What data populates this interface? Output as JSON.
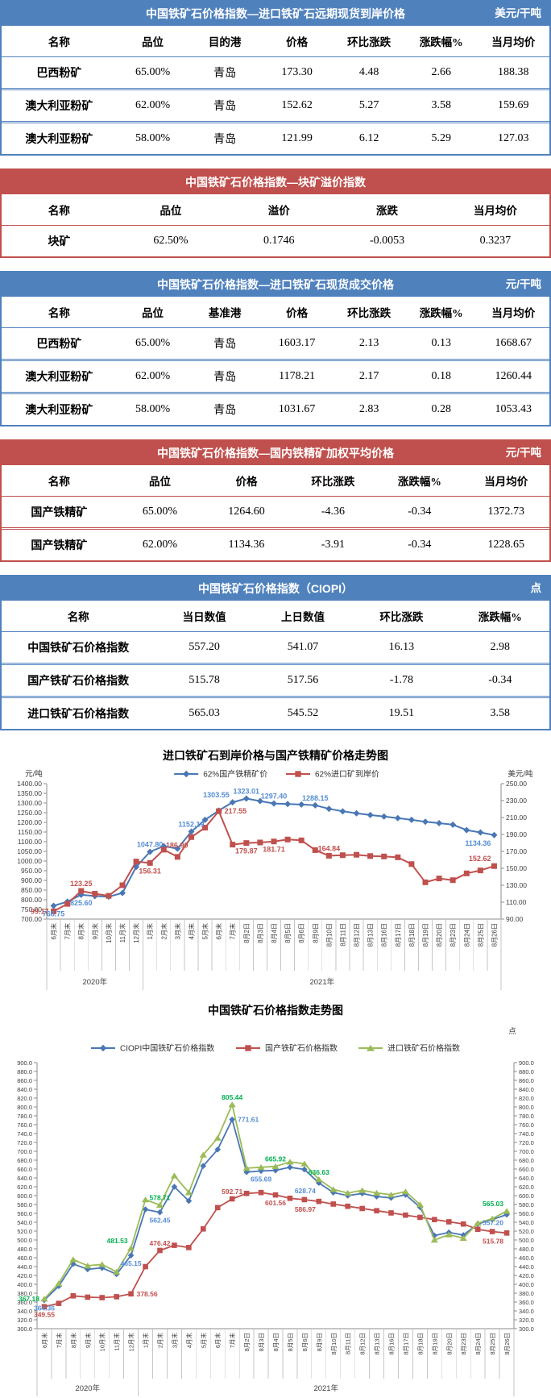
{
  "accent_colors": {
    "blue_theme": "#4F81BD",
    "red_theme": "#C0504D"
  },
  "tables": [
    {
      "theme": "blue",
      "title": "中国铁矿石价格指数—进口铁矿石远期现货到岸价格",
      "unit": "美元/干吨",
      "columns": [
        "名称",
        "品位",
        "目的港",
        "价格",
        "环比涨跌",
        "涨跌幅%",
        "当月均价"
      ],
      "rows": [
        [
          "巴西粉矿",
          "65.00%",
          "青岛",
          "173.30",
          "4.48",
          "2.66",
          "188.38"
        ],
        [
          "澳大利亚粉矿",
          "62.00%",
          "青岛",
          "152.62",
          "5.27",
          "3.58",
          "159.69"
        ],
        [
          "澳大利亚粉矿",
          "58.00%",
          "青岛",
          "121.99",
          "6.12",
          "5.29",
          "127.03"
        ]
      ]
    },
    {
      "theme": "red",
      "title": "中国铁矿石价格指数—块矿溢价指数",
      "unit": "",
      "columns": [
        "名称",
        "品位",
        "溢价",
        "涨跌",
        "当月均价"
      ],
      "rows": [
        [
          "块矿",
          "62.50%",
          "0.1746",
          "-0.0053",
          "0.3237"
        ]
      ]
    },
    {
      "theme": "blue",
      "title": "中国铁矿石价格指数—进口铁矿石现货成交价格",
      "unit": "元/干吨",
      "columns": [
        "名称",
        "品位",
        "基准港",
        "价格",
        "环比涨跌",
        "涨跌幅%",
        "当月均价"
      ],
      "rows": [
        [
          "巴西粉矿",
          "65.00%",
          "青岛",
          "1603.17",
          "2.13",
          "0.13",
          "1668.67"
        ],
        [
          "澳大利亚粉矿",
          "62.00%",
          "青岛",
          "1178.21",
          "2.17",
          "0.18",
          "1260.44"
        ],
        [
          "澳大利亚粉矿",
          "58.00%",
          "青岛",
          "1031.67",
          "2.83",
          "0.28",
          "1053.43"
        ]
      ]
    },
    {
      "theme": "red",
      "title": "中国铁矿石价格指数—国内铁精矿加权平均价格",
      "unit": "元/干吨",
      "columns": [
        "名称",
        "品位",
        "价格",
        "环比涨跌",
        "涨跌幅%",
        "当月均价"
      ],
      "rows": [
        [
          "国产铁精矿",
          "65.00%",
          "1264.60",
          "-4.36",
          "-0.34",
          "1372.73"
        ],
        [
          "国产铁精矿",
          "62.00%",
          "1134.36",
          "-3.91",
          "-0.34",
          "1228.65"
        ]
      ]
    },
    {
      "theme": "blue",
      "title": "中国铁矿石价格指数（CIOPI）",
      "unit": "点",
      "columns": [
        "名称",
        "当日数值",
        "上日数值",
        "环比涨跌",
        "涨跌幅%"
      ],
      "rows": [
        [
          "中国铁矿石价格指数",
          "557.20",
          "541.07",
          "16.13",
          "2.98"
        ],
        [
          "国产铁矿石价格指数",
          "515.78",
          "517.56",
          "-1.78",
          "-0.34"
        ],
        [
          "进口铁矿石价格指数",
          "565.03",
          "545.52",
          "19.51",
          "3.58"
        ]
      ]
    }
  ],
  "chart_data": [
    {
      "type": "line",
      "title": "进口铁矿石到岸价格与国产铁精矿价格走势图",
      "left_axis_label": "元/吨",
      "right_axis_label": "美元/吨",
      "left_ylim": [
        700,
        1400
      ],
      "left_step": 50,
      "right_ylim": [
        90,
        250
      ],
      "right_step": 20,
      "grid": false,
      "legend_position": "top",
      "categories": [
        "6月末",
        "7月末",
        "8月末",
        "9月末",
        "10月末",
        "11月末",
        "12月末",
        "1月末",
        "2月末",
        "3月末",
        "4月末",
        "5月末",
        "6月末",
        "7月末",
        "8月2日",
        "8月3日",
        "8月4日",
        "8月5日",
        "8月6日",
        "8月9日",
        "8月10日",
        "8月11日",
        "8月12日",
        "8月13日",
        "8月16日",
        "8月17日",
        "8月18日",
        "8月19日",
        "8月20日",
        "8月23日",
        "8月24日",
        "8月25日",
        "8月26日"
      ],
      "year_groups": [
        {
          "label": "2020年",
          "span": 7
        },
        {
          "label": "2021年",
          "span": 26
        }
      ],
      "series": [
        {
          "name": "62%国产铁精矿价",
          "axis": "left",
          "marker": "diamond",
          "color": "#4977B5",
          "label_color": "#558ED5",
          "values": [
            768.75,
            790,
            825.6,
            819,
            816,
            835,
            970,
            1047.8,
            1077,
            1064,
            1152.19,
            1213,
            1261,
            1303.55,
            1323.01,
            1310,
            1297.4,
            1295,
            1292,
            1288.15,
            1270,
            1257,
            1247,
            1238,
            1230,
            1222,
            1213,
            1203,
            1196,
            1188,
            1160,
            1148,
            1134.36
          ],
          "labels": [
            [
              0,
              "768.75",
              "below"
            ],
            [
              2,
              "825.60",
              "below"
            ],
            [
              7,
              "1047.80",
              "above"
            ],
            [
              10,
              "1152.19",
              "above"
            ],
            [
              13,
              "1303.55",
              "above-left"
            ],
            [
              14,
              "1323.01",
              "above"
            ],
            [
              16,
              "1297.40",
              "above"
            ],
            [
              19,
              "1288.15",
              "above"
            ],
            [
              32,
              "1134.36",
              "below-left"
            ]
          ]
        },
        {
          "name": "62%进口矿到岸价",
          "axis": "right",
          "marker": "square",
          "color": "#C0504D",
          "label_color": "#C0504D",
          "values": [
            99.17,
            108,
            123.25,
            120,
            117.5,
            130,
            158,
            156.31,
            172,
            163.5,
            186.9,
            198,
            217.55,
            178,
            179.87,
            180.5,
            181.71,
            184,
            183,
            171.5,
            164.84,
            165.5,
            166,
            164.5,
            164,
            163,
            155,
            133.5,
            138,
            136,
            144,
            147.5,
            152.62
          ],
          "labels": [
            [
              0,
              "99.17",
              "left"
            ],
            [
              2,
              "123.25",
              "above"
            ],
            [
              7,
              "156.31",
              "below"
            ],
            [
              10,
              "186.90",
              "below-left"
            ],
            [
              12,
              "217.55",
              "right"
            ],
            [
              14,
              "179.87",
              "below"
            ],
            [
              16,
              "181.71",
              "below"
            ],
            [
              20,
              "164.84",
              "above"
            ],
            [
              32,
              "152.62",
              "above-left"
            ]
          ]
        }
      ]
    },
    {
      "type": "line",
      "title": "中国铁矿石价格指数走势图",
      "unit_label": "点",
      "left_ylim": [
        300,
        900
      ],
      "left_step": 20,
      "right_ylim": [
        300,
        900
      ],
      "right_step": 20,
      "grid": false,
      "legend_position": "top",
      "categories": [
        "6月末",
        "7月末",
        "8月末",
        "9月末",
        "10月末",
        "11月末",
        "12月末",
        "1月末",
        "2月末",
        "3月末",
        "4月末",
        "5月末",
        "6月末",
        "7月末",
        "8月2日",
        "8月3日",
        "8月4日",
        "8月5日",
        "8月6日",
        "8月9日",
        "8月10日",
        "8月11日",
        "8月12日",
        "8月13日",
        "8月16日",
        "8月17日",
        "8月18日",
        "8月19日",
        "8月20日",
        "8月23日",
        "8月24日",
        "8月25日",
        "8月26日"
      ],
      "year_groups": [
        {
          "label": "2020年",
          "span": 7
        },
        {
          "label": "2021年",
          "span": 26
        }
      ],
      "series": [
        {
          "name": "CIOPI中国铁矿石价格指数",
          "axis": "left",
          "marker": "diamond",
          "color": "#4977B5",
          "label_color": "#558ED5",
          "values": [
            364.36,
            396,
            446,
            434,
            437,
            423,
            465.15,
            569,
            562.45,
            620,
            588,
            667,
            704,
            771.61,
            653,
            655.69,
            657,
            664,
            659,
            628.74,
            607,
            600,
            605,
            598,
            595,
            602,
            574,
            510,
            517,
            511,
            536,
            546,
            557.2
          ],
          "labels": [
            [
              0,
              "364.36",
              "below"
            ],
            [
              6,
              "465.15",
              "below"
            ],
            [
              8,
              "562.45",
              "below"
            ],
            [
              13,
              "771.61",
              "right"
            ],
            [
              15,
              "655.69",
              "below"
            ],
            [
              19,
              "628.74",
              "below-left"
            ],
            [
              32,
              "557.20",
              "below-left"
            ]
          ]
        },
        {
          "name": "国产铁矿石价格指数",
          "axis": "left",
          "marker": "square",
          "color": "#C0504D",
          "label_color": "#C0504D",
          "values": [
            349.55,
            357,
            374,
            371,
            370,
            372,
            378.56,
            440,
            476.42,
            488,
            483,
            525,
            573,
            592.71,
            605,
            607,
            601.56,
            594,
            591,
            586.97,
            581,
            576,
            571,
            566,
            561,
            556,
            551,
            546,
            541,
            536,
            524,
            519,
            515.78
          ],
          "labels": [
            [
              0,
              "349.55",
              "below"
            ],
            [
              6,
              "378.56",
              "right"
            ],
            [
              8,
              "476.42",
              "above"
            ],
            [
              13,
              "592.71",
              "above"
            ],
            [
              16,
              "601.56",
              "below"
            ],
            [
              19,
              "586.97",
              "below-left"
            ],
            [
              32,
              "515.78",
              "below-left"
            ]
          ]
        },
        {
          "name": "进口铁矿石价格指数",
          "axis": "left",
          "marker": "triangle",
          "color": "#9BBB59",
          "label_color": "#00B050",
          "values": [
            367.18,
            402,
            456,
            442,
            445,
            428,
            481.53,
            591,
            578.71,
            645,
            607,
            692,
            730,
            805.44,
            662,
            664,
            665.92,
            676,
            672,
            636.63,
            614,
            606,
            612,
            606,
            602,
            609,
            580,
            500,
            512,
            504,
            538,
            548,
            565.03
          ],
          "labels": [
            [
              0,
              "367.18",
              "left"
            ],
            [
              6,
              "481.53",
              "above-left"
            ],
            [
              8,
              "578.71",
              "above"
            ],
            [
              13,
              "805.44",
              "above"
            ],
            [
              16,
              "665.92",
              "above"
            ],
            [
              19,
              "636.63",
              "above"
            ],
            [
              32,
              "565.03",
              "above-left"
            ]
          ]
        }
      ]
    }
  ]
}
